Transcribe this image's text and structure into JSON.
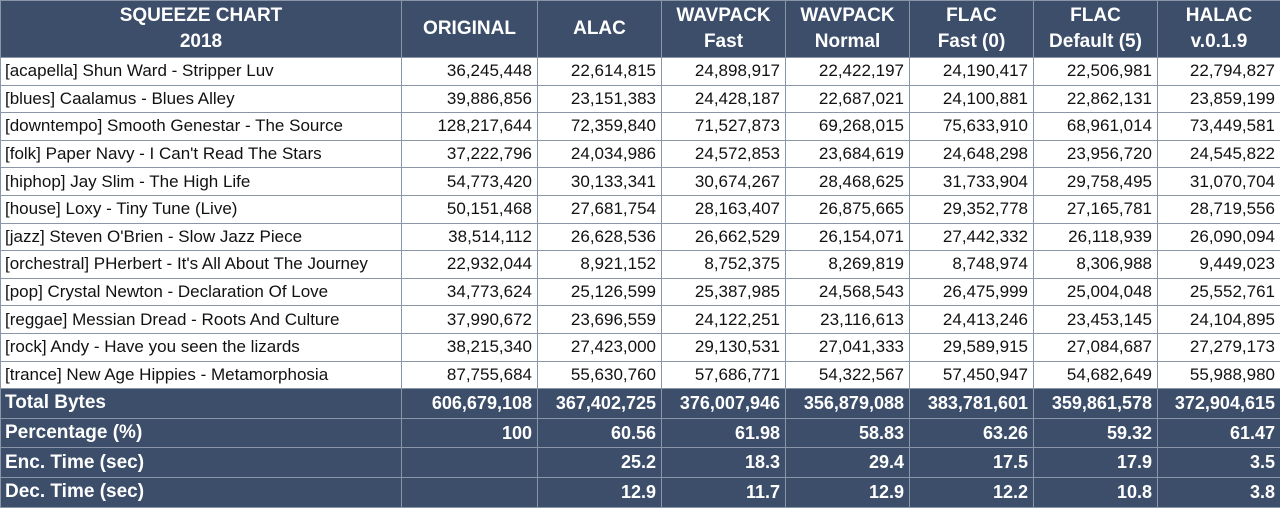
{
  "chart_data": {
    "type": "table",
    "title": [
      "SQUEEZE CHART",
      "2018"
    ],
    "columns": [
      {
        "key": "original",
        "lines": [
          "ORIGINAL"
        ]
      },
      {
        "key": "alac",
        "lines": [
          "ALAC"
        ]
      },
      {
        "key": "wavpack_fast",
        "lines": [
          "WAVPACK",
          "Fast"
        ]
      },
      {
        "key": "wavpack_normal",
        "lines": [
          "WAVPACK",
          "Normal"
        ]
      },
      {
        "key": "flac_fast",
        "lines": [
          "FLAC",
          "Fast (0)"
        ]
      },
      {
        "key": "flac_default",
        "lines": [
          "FLAC",
          "Default (5)"
        ]
      },
      {
        "key": "halac",
        "lines": [
          "HALAC",
          "v.0.1.9"
        ]
      }
    ],
    "rows": [
      {
        "label": "[acapella] Shun Ward - Stripper Luv",
        "values": [
          "36,245,448",
          "22,614,815",
          "24,898,917",
          "22,422,197",
          "24,190,417",
          "22,506,981",
          "22,794,827"
        ]
      },
      {
        "label": "[blues] Caalamus - Blues Alley",
        "values": [
          "39,886,856",
          "23,151,383",
          "24,428,187",
          "22,687,021",
          "24,100,881",
          "22,862,131",
          "23,859,199"
        ]
      },
      {
        "label": "[downtempo] Smooth Genestar - The Source",
        "values": [
          "128,217,644",
          "72,359,840",
          "71,527,873",
          "69,268,015",
          "75,633,910",
          "68,961,014",
          "73,449,581"
        ]
      },
      {
        "label": "[folk] Paper Navy - I Can't Read The Stars",
        "values": [
          "37,222,796",
          "24,034,986",
          "24,572,853",
          "23,684,619",
          "24,648,298",
          "23,956,720",
          "24,545,822"
        ]
      },
      {
        "label": "[hiphop] Jay Slim - The High Life",
        "values": [
          "54,773,420",
          "30,133,341",
          "30,674,267",
          "28,468,625",
          "31,733,904",
          "29,758,495",
          "31,070,704"
        ]
      },
      {
        "label": "[house] Loxy - Tiny Tune (Live)",
        "values": [
          "50,151,468",
          "27,681,754",
          "28,163,407",
          "26,875,665",
          "29,352,778",
          "27,165,781",
          "28,719,556"
        ]
      },
      {
        "label": "[jazz] Steven O'Brien - Slow Jazz Piece",
        "values": [
          "38,514,112",
          "26,628,536",
          "26,662,529",
          "26,154,071",
          "27,442,332",
          "26,118,939",
          "26,090,094"
        ]
      },
      {
        "label": "[orchestral] PHerbert - It's All About The Journey",
        "values": [
          "22,932,044",
          "8,921,152",
          "8,752,375",
          "8,269,819",
          "8,748,974",
          "8,306,988",
          "9,449,023"
        ]
      },
      {
        "label": "[pop] Crystal Newton - Declaration Of Love",
        "values": [
          "34,773,624",
          "25,126,599",
          "25,387,985",
          "24,568,543",
          "26,475,999",
          "25,004,048",
          "25,552,761"
        ]
      },
      {
        "label": "[reggae] Messian Dread - Roots And Culture",
        "values": [
          "37,990,672",
          "23,696,559",
          "24,122,251",
          "23,116,613",
          "24,413,246",
          "23,453,145",
          "24,104,895"
        ]
      },
      {
        "label": "[rock] Andy - Have you seen the lizards",
        "values": [
          "38,215,340",
          "27,423,000",
          "29,130,531",
          "27,041,333",
          "29,589,915",
          "27,084,687",
          "27,279,173"
        ]
      },
      {
        "label": "[trance] New Age Hippies - Metamorphosia",
        "values": [
          "87,755,684",
          "55,630,760",
          "57,686,771",
          "54,322,567",
          "57,450,947",
          "54,682,649",
          "55,988,980"
        ]
      }
    ],
    "summary_rows": [
      {
        "label": "Total Bytes",
        "values": [
          "606,679,108",
          "367,402,725",
          "376,007,946",
          "356,879,088",
          "383,781,601",
          "359,861,578",
          "372,904,615"
        ]
      },
      {
        "label": "Percentage (%)",
        "values": [
          "100",
          "60.56",
          "61.98",
          "58.83",
          "63.26",
          "59.32",
          "61.47"
        ]
      },
      {
        "label": "Enc. Time (sec)",
        "values": [
          "",
          "25.2",
          "18.3",
          "29.4",
          "17.5",
          "17.9",
          "3.5"
        ]
      },
      {
        "label": "Dec. Time (sec)",
        "values": [
          "",
          "12.9",
          "11.7",
          "12.9",
          "12.2",
          "10.8",
          "3.8"
        ]
      }
    ]
  },
  "colors": {
    "header_background": "#3c4e6a",
    "header_text": "#ffffff",
    "cell_background": "#ffffff",
    "cell_text": "#111111",
    "grid": "#8a96a8"
  }
}
